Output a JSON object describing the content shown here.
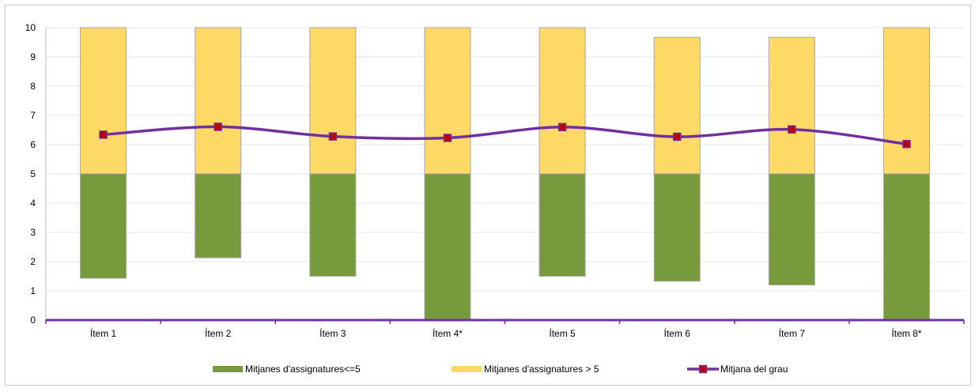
{
  "chart_data": {
    "type": "bar",
    "categories": [
      "Ítem 1",
      "Ítem 2",
      "Ítem 3",
      "Ítem 4*",
      "Ítem 5",
      "Ítem 6",
      "Ítem 7",
      "Ítem 8*"
    ],
    "ylim": [
      0,
      10
    ],
    "yticks": [
      0,
      1,
      2,
      3,
      4,
      5,
      6,
      7,
      8,
      9,
      10
    ],
    "grid": true,
    "legend_position": "bottom",
    "series": [
      {
        "name": "Mitjanes d'assignatures<=5",
        "kind": "floating-bar",
        "color": "#779a3c",
        "low": [
          1.43,
          2.13,
          1.5,
          0,
          1.5,
          1.33,
          1.2,
          0
        ],
        "high": [
          5,
          5,
          5,
          5,
          5,
          5,
          5,
          5
        ]
      },
      {
        "name": "Mitjanes d'assignatures > 5",
        "kind": "floating-bar",
        "color": "#ffd966",
        "low": [
          5,
          5,
          5,
          5,
          5,
          5,
          5,
          5
        ],
        "high": [
          10,
          10,
          10,
          10,
          10,
          9.67,
          9.67,
          10
        ]
      },
      {
        "name": "Mitjana del grau",
        "kind": "line",
        "color": "#7030a0",
        "marker_color": "#c00000",
        "values": [
          6.34,
          6.61,
          6.28,
          6.23,
          6.6,
          6.27,
          6.52,
          6.02
        ]
      }
    ]
  }
}
